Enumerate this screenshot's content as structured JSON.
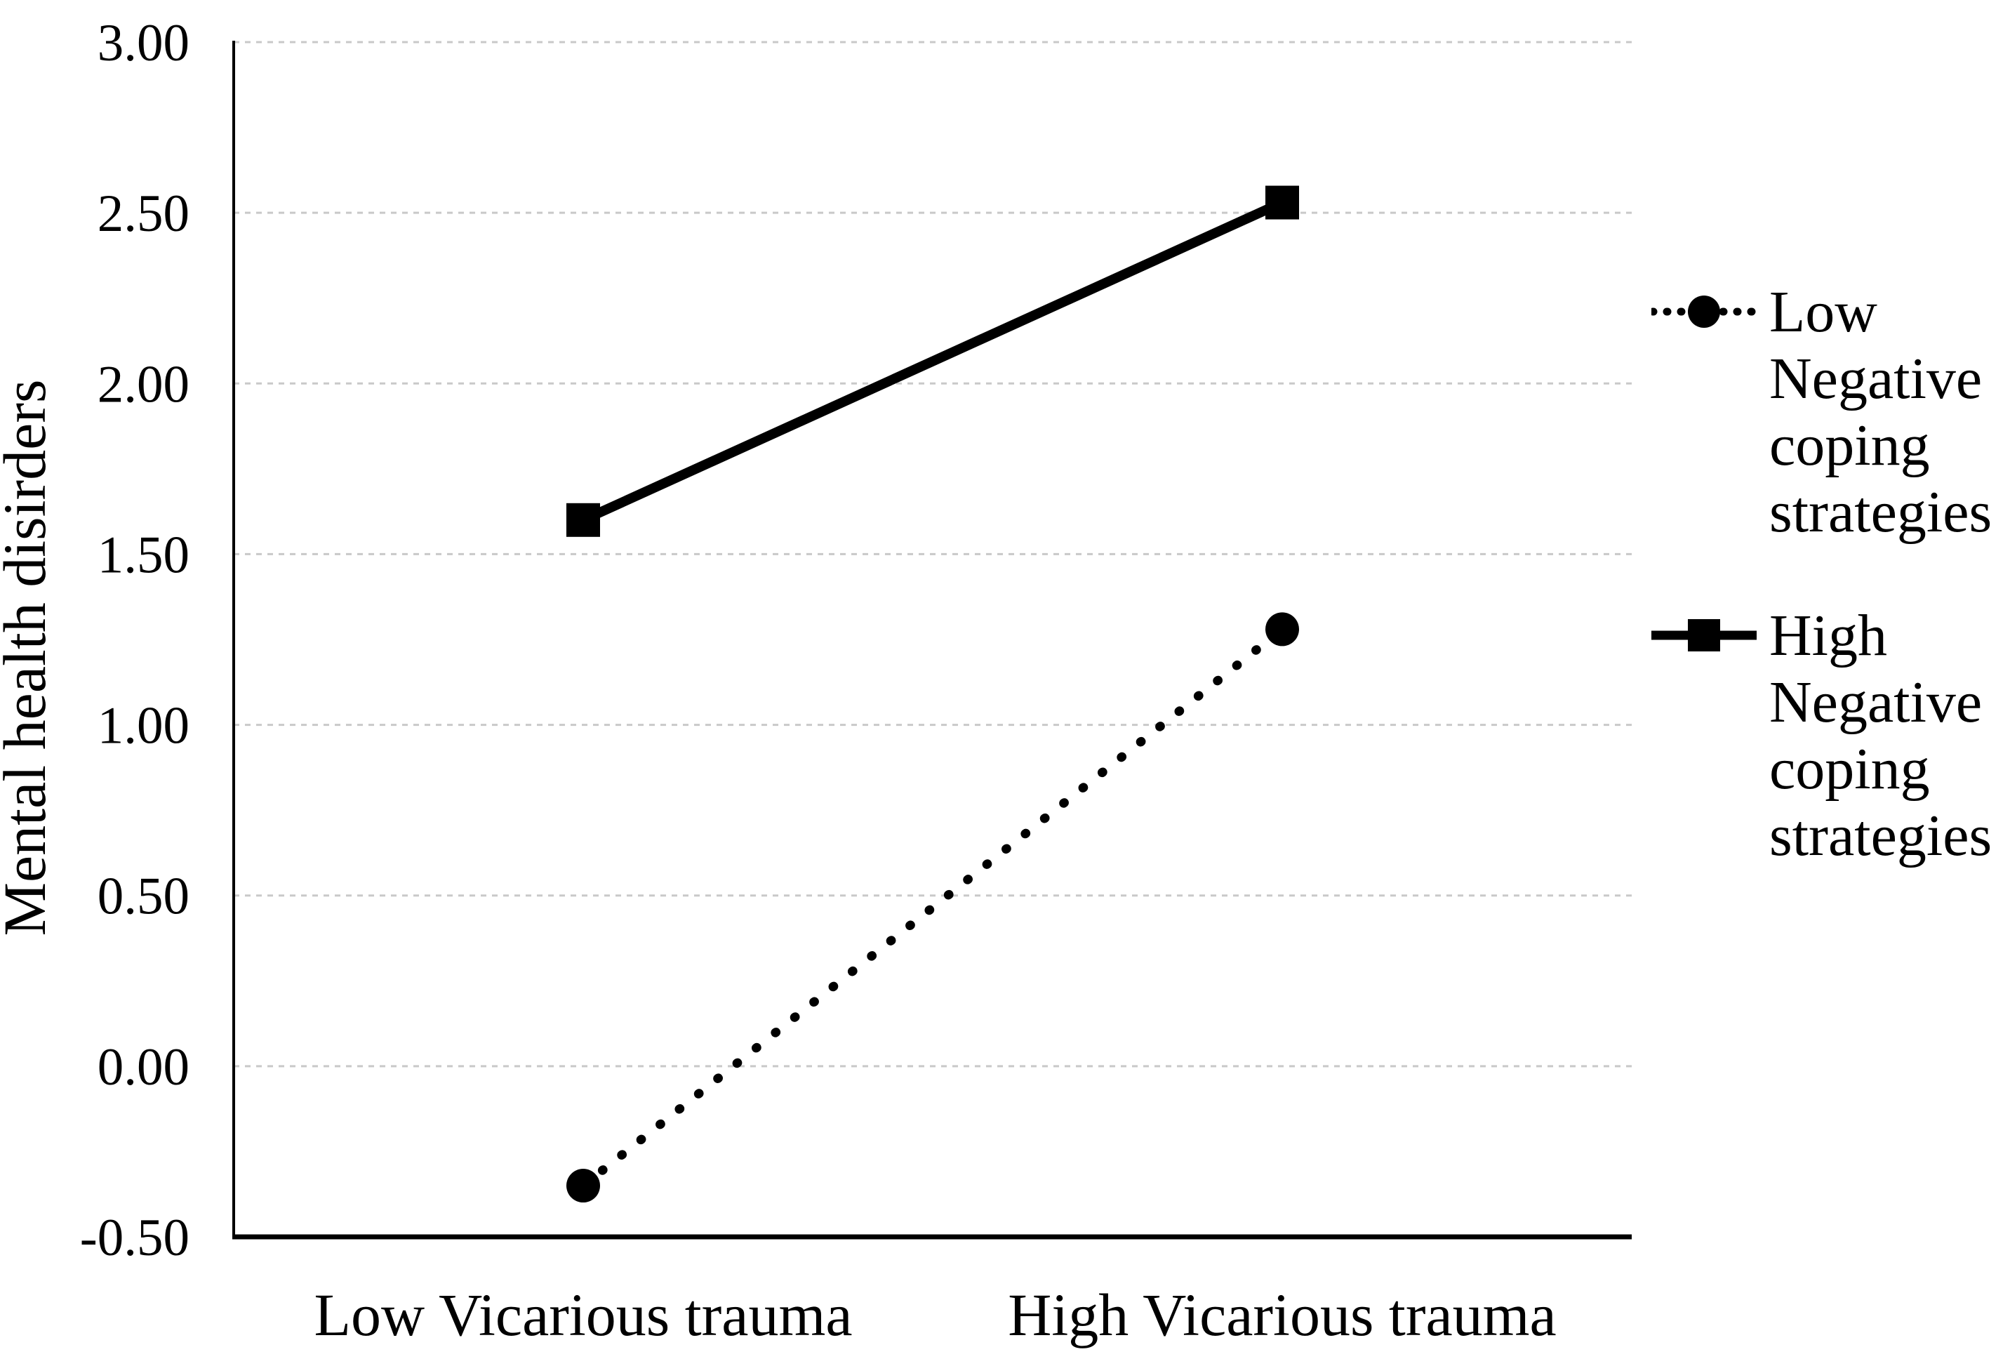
{
  "figure": {
    "background_color": "#ffffff"
  },
  "chart_data": {
    "type": "line",
    "title": "",
    "xlabel": "",
    "ylabel": "Mental health disirders",
    "categories": [
      "Low Vicarious trauma",
      "High Vicarious trauma"
    ],
    "series": [
      {
        "name": "Low Negative coping strategies",
        "legend_label": "Low\nNegative\ncoping\nstrategies",
        "values": [
          -0.35,
          1.28
        ],
        "line_style": "dotted",
        "marker": "circle",
        "color": "#000000"
      },
      {
        "name": "High Negative coping strategies",
        "legend_label": "High\nNegative\ncoping\nstrategies",
        "values": [
          1.6,
          2.53
        ],
        "line_style": "solid",
        "marker": "square",
        "color": "#000000"
      }
    ],
    "ylim": [
      -0.5,
      3.0
    ],
    "ytick_step": 0.5,
    "ytick_labels": [
      "3.00",
      "2.50",
      "2.00",
      "1.50",
      "1.00",
      "0.50",
      "0.00",
      "-0.50"
    ],
    "grid": true,
    "gridline_color": "#c9c9c9",
    "axis_color": "#000000",
    "text_color": "#000000",
    "legend_position": "right"
  }
}
